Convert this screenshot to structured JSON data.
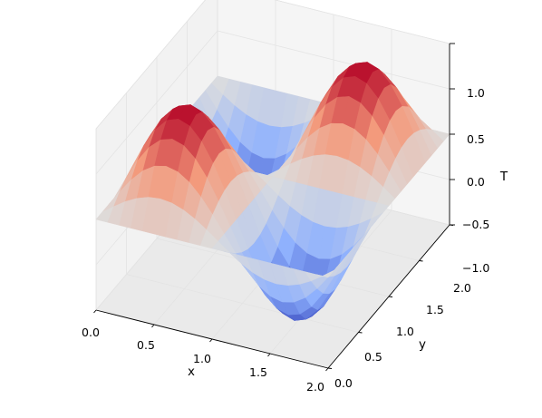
{
  "chart_data": {
    "type": "surface3d",
    "title": "",
    "xlabel": "x",
    "ylabel": "y",
    "zlabel": "T",
    "xlim": [
      0.0,
      2.0
    ],
    "ylim": [
      0.0,
      2.0
    ],
    "zlim": [
      -1.0,
      1.0
    ],
    "x_ticks": [
      "0.0",
      "0.5",
      "1.0",
      "1.5",
      "2.0"
    ],
    "y_ticks": [
      "0.0",
      "0.5",
      "1.0",
      "1.5",
      "2.0"
    ],
    "z_ticks": [
      "−1.0",
      "−0.5",
      "0.0",
      "0.5",
      "1.0"
    ],
    "function": "T = sin(pi*x) * sin(pi*y)",
    "grid_points_per_axis": 21,
    "colormap": "coolwarm",
    "grid": true
  }
}
